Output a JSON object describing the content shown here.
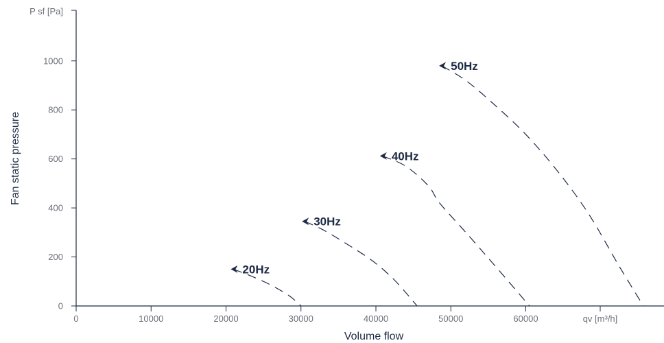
{
  "chart_data": {
    "type": "line",
    "title": "",
    "xlabel": "Volume flow",
    "ylabel": "Fan static pressure",
    "x_unit_label": "qv [m³/h]",
    "y_unit_label": "P sf [Pa]",
    "xlim": [
      0,
      78000
    ],
    "ylim": [
      0,
      1200
    ],
    "x_ticks": [
      0,
      10000,
      20000,
      30000,
      40000,
      50000,
      60000
    ],
    "x_tick_labels": [
      "0",
      "10000",
      "20000",
      "30000",
      "40000",
      "50000",
      "60000"
    ],
    "y_ticks": [
      0,
      200,
      400,
      600,
      800,
      1000
    ],
    "y_tick_labels": [
      "0",
      "200",
      "400",
      "600",
      "800",
      "1000"
    ],
    "grid": false,
    "line_style": "dashed",
    "colors": {
      "axis": "#1e2b45",
      "tick_text": "#6b6f78",
      "curve": "#1e2b45"
    },
    "series": [
      {
        "name": "20Hz",
        "x": [
          21000,
          23500,
          26000,
          28500,
          30000
        ],
        "y": [
          150,
          120,
          85,
          40,
          0
        ]
      },
      {
        "name": "30Hz",
        "x": [
          30500,
          33000,
          36000,
          39500,
          42500,
          45500
        ],
        "y": [
          345,
          310,
          255,
          185,
          105,
          0
        ]
      },
      {
        "name": "40Hz",
        "x": [
          40900,
          44000,
          47000,
          48500,
          52000,
          56000,
          60500
        ],
        "y": [
          612,
          570,
          490,
          420,
          300,
          160,
          0
        ]
      },
      {
        "name": "50Hz",
        "x": [
          48800,
          52000,
          55500,
          60000,
          64500,
          68500,
          72500,
          75700
        ],
        "y": [
          980,
          920,
          830,
          700,
          540,
          370,
          160,
          0
        ]
      }
    ]
  }
}
